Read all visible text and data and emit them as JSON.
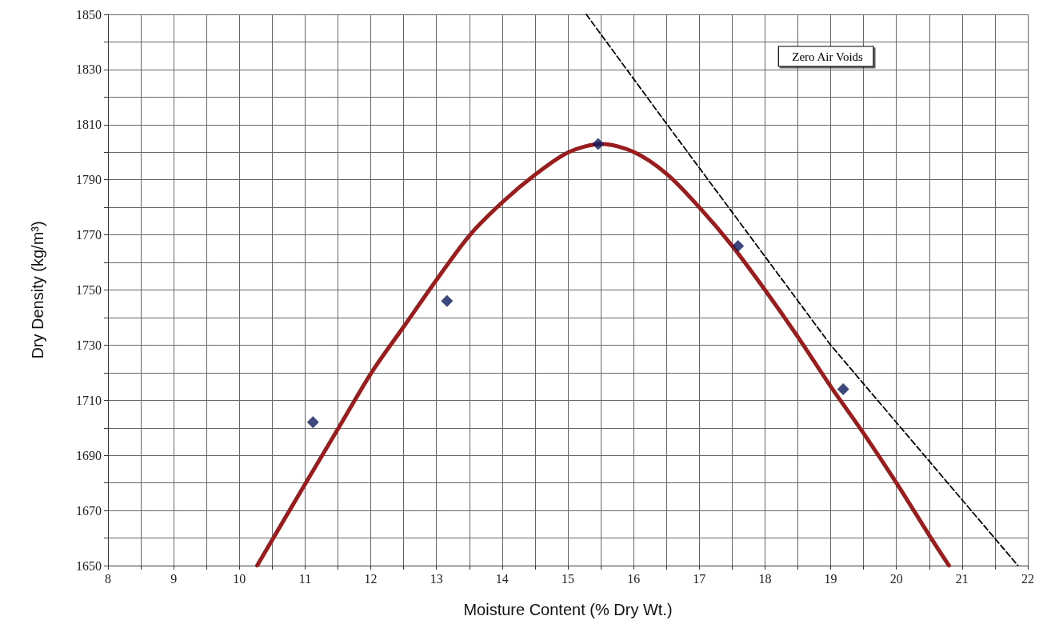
{
  "chart_data": {
    "type": "scatter",
    "xlabel": "Moisture Content (% Dry Wt.)",
    "ylabel": "Dry Density (kg/m³)",
    "xlim": [
      8,
      22
    ],
    "ylim": [
      1650,
      1850
    ],
    "xticks": [
      8,
      {
        "value": 8.5,
        "label": null
      },
      9,
      {
        "value": 9.5,
        "label": null
      },
      10,
      {
        "value": 10.5,
        "label": null
      },
      11,
      {
        "value": 11.5,
        "label": null
      },
      12,
      {
        "value": 12.5,
        "label": null
      },
      13,
      {
        "value": 13.5,
        "label": null
      },
      14,
      {
        "value": 14.5,
        "label": null
      },
      15,
      {
        "value": 15.5,
        "label": null
      },
      16,
      {
        "value": 16.5,
        "label": null
      },
      17,
      {
        "value": 17.5,
        "label": null
      },
      18,
      {
        "value": 18.5,
        "label": null
      },
      19,
      {
        "value": 19.5,
        "label": null
      },
      20,
      {
        "value": 20.5,
        "label": null
      },
      21,
      {
        "value": 21.5,
        "label": null
      },
      22
    ],
    "yticks": [
      1650,
      {
        "value": 1660,
        "label": null
      },
      1670,
      {
        "value": 1680,
        "label": null
      },
      1690,
      {
        "value": 1700,
        "label": null
      },
      1710,
      {
        "value": 1720,
        "label": null
      },
      1730,
      {
        "value": 1740,
        "label": null
      },
      1750,
      {
        "value": 1760,
        "label": null
      },
      1770,
      {
        "value": 1780,
        "label": null
      },
      1790,
      {
        "value": 1800,
        "label": null
      },
      1810,
      {
        "value": 1820,
        "label": null
      },
      1830,
      {
        "value": 1840,
        "label": null
      },
      1850
    ],
    "grid": true,
    "legend": "top right",
    "series": [
      {
        "color": "#0d1a5c",
        "marker": "diamond",
        "x": [
          11.12,
          13.16,
          15.46,
          17.59,
          19.19
        ],
        "values": [
          1702,
          1746,
          1803,
          1766,
          1714
        ]
      },
      {
        "type": "line",
        "color": "#9b1c1c",
        "marker": "none",
        "line_style": "solid",
        "x": [
          10.27,
          11.01,
          11.51,
          12.01,
          12.51,
          13.01,
          13.51,
          14.01,
          14.51,
          15.01,
          15.51,
          16.01,
          16.51,
          17.0,
          17.5,
          18.0,
          18.5,
          19.0,
          19.5,
          20.0,
          20.5,
          20.8
        ],
        "values": [
          1650,
          1680,
          1700,
          1720,
          1737,
          1754,
          1770,
          1782,
          1792,
          1800,
          1803,
          1800,
          1792,
          1780,
          1766,
          1750,
          1733,
          1715,
          1698,
          1680,
          1661,
          1650
        ]
      },
      {
        "type": "line",
        "name": "Zero Air Voids",
        "color": "#000000",
        "marker": "none",
        "line_style": "dashed",
        "x": [
          15.28,
          16.45,
          19.0,
          21.85
        ],
        "values": [
          1850,
          1812,
          1730,
          1650
        ]
      }
    ]
  }
}
